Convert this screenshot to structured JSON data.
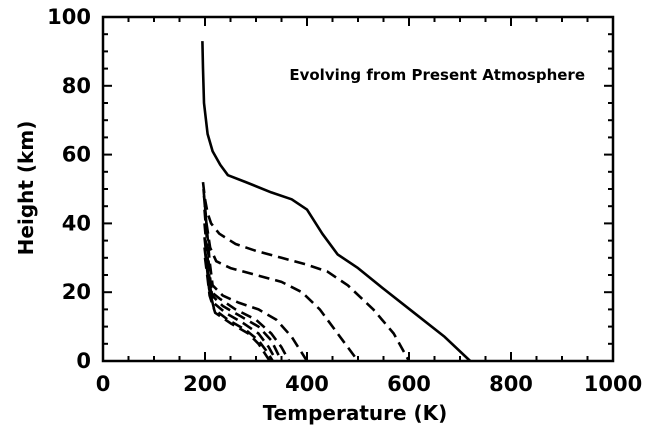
{
  "chart_data": {
    "type": "line",
    "title": "",
    "xlabel": "Temperature (K)",
    "ylabel": "Height (km)",
    "xlim": [
      0,
      1000
    ],
    "ylim": [
      0,
      100
    ],
    "xticks": [
      0,
      200,
      400,
      600,
      800,
      1000
    ],
    "yticks": [
      0,
      20,
      40,
      60,
      80,
      100
    ],
    "x_minor_step": 50,
    "y_minor_step": 5,
    "grid": false,
    "legend": "none",
    "annotation": "Evolving from Present Atmosphere",
    "series": [
      {
        "style": "solid",
        "points": [
          [
            195,
            93
          ],
          [
            196,
            85
          ],
          [
            198,
            75
          ],
          [
            205,
            66
          ],
          [
            215,
            61
          ],
          [
            230,
            57
          ],
          [
            245,
            54
          ],
          [
            280,
            52
          ],
          [
            330,
            49
          ],
          [
            370,
            47
          ],
          [
            400,
            44
          ],
          [
            430,
            37
          ],
          [
            460,
            31
          ],
          [
            500,
            27
          ],
          [
            550,
            21
          ],
          [
            610,
            14
          ],
          [
            670,
            7
          ],
          [
            720,
            0
          ]
        ]
      },
      {
        "style": "dashed",
        "points": [
          [
            196,
            52
          ],
          [
            200,
            47
          ],
          [
            205,
            43
          ],
          [
            212,
            40
          ],
          [
            228,
            37
          ],
          [
            260,
            34
          ],
          [
            300,
            32
          ],
          [
            350,
            30
          ],
          [
            400,
            28
          ],
          [
            440,
            26
          ],
          [
            480,
            22
          ],
          [
            530,
            15
          ],
          [
            570,
            8
          ],
          [
            600,
            0
          ]
        ]
      },
      {
        "style": "dashed",
        "points": [
          [
            197,
            50
          ],
          [
            203,
            40
          ],
          [
            210,
            33
          ],
          [
            222,
            29
          ],
          [
            250,
            27
          ],
          [
            300,
            25
          ],
          [
            350,
            23
          ],
          [
            390,
            20
          ],
          [
            425,
            15
          ],
          [
            460,
            8
          ],
          [
            500,
            0
          ]
        ]
      },
      {
        "style": "dashed",
        "points": [
          [
            198,
            48
          ],
          [
            204,
            38
          ],
          [
            209,
            29
          ],
          [
            215,
            22
          ],
          [
            235,
            19
          ],
          [
            265,
            17
          ],
          [
            305,
            15
          ],
          [
            340,
            12
          ],
          [
            370,
            7
          ],
          [
            400,
            0
          ]
        ]
      },
      {
        "style": "dashed",
        "points": [
          [
            199,
            44
          ],
          [
            204,
            35
          ],
          [
            208,
            27
          ],
          [
            213,
            20
          ],
          [
            230,
            18
          ],
          [
            260,
            15
          ],
          [
            300,
            12
          ],
          [
            330,
            8
          ],
          [
            350,
            4
          ],
          [
            365,
            0
          ]
        ]
      },
      {
        "style": "dashed",
        "points": [
          [
            199,
            40
          ],
          [
            204,
            32
          ],
          [
            208,
            25
          ],
          [
            214,
            19
          ],
          [
            235,
            16
          ],
          [
            270,
            13
          ],
          [
            305,
            10
          ],
          [
            330,
            6
          ],
          [
            350,
            0
          ]
        ]
      },
      {
        "style": "dashed",
        "points": [
          [
            199,
            36
          ],
          [
            204,
            29
          ],
          [
            208,
            23
          ],
          [
            216,
            17
          ],
          [
            240,
            14
          ],
          [
            275,
            11
          ],
          [
            305,
            8
          ],
          [
            325,
            4
          ],
          [
            340,
            0
          ]
        ]
      },
      {
        "style": "dashed",
        "points": [
          [
            199,
            33
          ],
          [
            204,
            27
          ],
          [
            208,
            21
          ],
          [
            218,
            15
          ],
          [
            245,
            12
          ],
          [
            280,
            9
          ],
          [
            305,
            6
          ],
          [
            320,
            3
          ],
          [
            333,
            0
          ]
        ]
      },
      {
        "style": "dashed",
        "points": [
          [
            200,
            30
          ],
          [
            205,
            24
          ],
          [
            209,
            19
          ],
          [
            220,
            14
          ],
          [
            250,
            11
          ],
          [
            285,
            8
          ],
          [
            305,
            5
          ],
          [
            318,
            2
          ],
          [
            327,
            0
          ]
        ]
      }
    ]
  }
}
